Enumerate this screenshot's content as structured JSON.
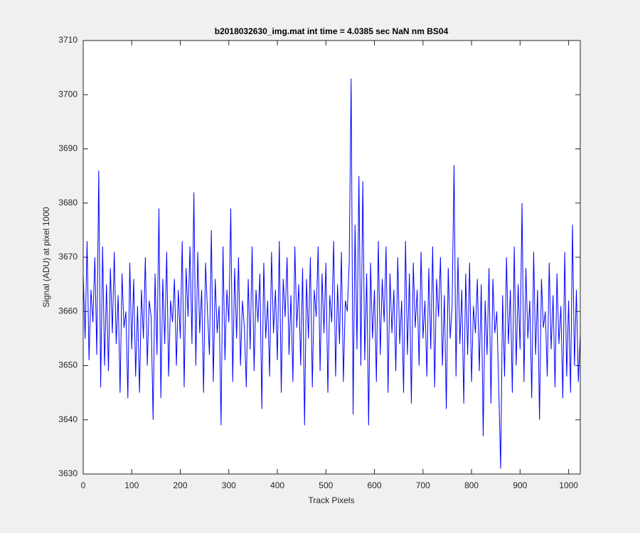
{
  "chart_data": {
    "type": "line",
    "title": "b2018032630_img.mat int time = 4.0385 sec  NaN nm BS04",
    "xlabel": "Track Pixels",
    "ylabel": "Signal (ADU) at pixel 1000",
    "color": "#0000ff",
    "xlim": [
      0,
      1024
    ],
    "xticks": [
      0,
      100,
      200,
      300,
      400,
      500,
      600,
      700,
      800,
      900,
      1000
    ],
    "ylim": [
      3630,
      3710
    ],
    "yticks": [
      3630,
      3640,
      3650,
      3660,
      3670,
      3680,
      3690,
      3700,
      3710
    ],
    "x": [
      0,
      4,
      8,
      12,
      16,
      20,
      24,
      28,
      32,
      36,
      40,
      44,
      48,
      52,
      56,
      60,
      64,
      68,
      72,
      76,
      80,
      84,
      88,
      92,
      96,
      100,
      104,
      108,
      112,
      116,
      120,
      124,
      128,
      132,
      136,
      140,
      144,
      148,
      152,
      156,
      160,
      164,
      168,
      172,
      176,
      180,
      184,
      188,
      192,
      196,
      200,
      204,
      208,
      212,
      216,
      220,
      224,
      228,
      232,
      236,
      240,
      244,
      248,
      252,
      256,
      260,
      264,
      268,
      272,
      276,
      280,
      284,
      288,
      292,
      296,
      300,
      304,
      308,
      312,
      316,
      320,
      324,
      328,
      332,
      336,
      340,
      344,
      348,
      352,
      356,
      360,
      364,
      368,
      372,
      376,
      380,
      384,
      388,
      392,
      396,
      400,
      404,
      408,
      412,
      416,
      420,
      424,
      428,
      432,
      436,
      440,
      444,
      448,
      452,
      456,
      460,
      464,
      468,
      472,
      476,
      480,
      484,
      488,
      492,
      496,
      500,
      504,
      508,
      512,
      516,
      520,
      524,
      528,
      532,
      536,
      540,
      544,
      548,
      552,
      556,
      560,
      564,
      568,
      572,
      576,
      580,
      584,
      588,
      592,
      596,
      600,
      604,
      608,
      612,
      616,
      620,
      624,
      628,
      632,
      636,
      640,
      644,
      648,
      652,
      656,
      660,
      664,
      668,
      672,
      676,
      680,
      684,
      688,
      692,
      696,
      700,
      704,
      708,
      712,
      716,
      720,
      724,
      728,
      732,
      736,
      740,
      744,
      748,
      752,
      756,
      760,
      764,
      768,
      772,
      776,
      780,
      784,
      788,
      792,
      796,
      800,
      804,
      808,
      812,
      816,
      820,
      824,
      828,
      832,
      836,
      840,
      844,
      848,
      852,
      856,
      860,
      864,
      868,
      872,
      876,
      880,
      884,
      888,
      892,
      896,
      900,
      904,
      908,
      912,
      916,
      920,
      924,
      928,
      932,
      936,
      940,
      944,
      948,
      952,
      956,
      960,
      964,
      968,
      972,
      976,
      980,
      984,
      988,
      992,
      996,
      1000,
      1004,
      1008,
      1012,
      1016,
      1020,
      1024
    ],
    "values": [
      3667,
      3655,
      3673,
      3651,
      3664,
      3658,
      3670,
      3652,
      3686,
      3646,
      3672,
      3650,
      3665,
      3649,
      3668,
      3656,
      3671,
      3654,
      3663,
      3645,
      3667,
      3657,
      3660,
      3644,
      3669,
      3653,
      3666,
      3648,
      3661,
      3645,
      3664,
      3655,
      3670,
      3650,
      3662,
      3659,
      3640,
      3667,
      3652,
      3679,
      3644,
      3666,
      3654,
      3671,
      3648,
      3662,
      3658,
      3666,
      3650,
      3664,
      3655,
      3673,
      3646,
      3668,
      3659,
      3672,
      3654,
      3682,
      3650,
      3671,
      3656,
      3664,
      3645,
      3669,
      3660,
      3652,
      3675,
      3647,
      3666,
      3656,
      3661,
      3639,
      3672,
      3651,
      3664,
      3658,
      3679,
      3647,
      3668,
      3655,
      3670,
      3650,
      3662,
      3657,
      3646,
      3666,
      3653,
      3672,
      3649,
      3664,
      3658,
      3667,
      3642,
      3669,
      3655,
      3662,
      3648,
      3671,
      3656,
      3664,
      3651,
      3673,
      3645,
      3666,
      3659,
      3670,
      3652,
      3663,
      3647,
      3672,
      3657,
      3665,
      3650,
      3668,
      3639,
      3666,
      3655,
      3670,
      3646,
      3664,
      3659,
      3672,
      3649,
      3667,
      3656,
      3669,
      3645,
      3663,
      3658,
      3673,
      3648,
      3665,
      3654,
      3671,
      3647,
      3662,
      3660,
      3669,
      3703,
      3641,
      3676,
      3653,
      3685,
      3650,
      3684,
      3651,
      3667,
      3639,
      3669,
      3655,
      3664,
      3647,
      3673,
      3652,
      3666,
      3658,
      3672,
      3645,
      3667,
      3656,
      3664,
      3649,
      3670,
      3654,
      3662,
      3645,
      3673,
      3652,
      3667,
      3643,
      3669,
      3657,
      3664,
      3650,
      3671,
      3655,
      3662,
      3648,
      3668,
      3653,
      3672,
      3646,
      3666,
      3659,
      3670,
      3650,
      3663,
      3642,
      3668,
      3655,
      3661,
      3687,
      3648,
      3670,
      3654,
      3664,
      3643,
      3667,
      3652,
      3669,
      3647,
      3661,
      3656,
      3666,
      3649,
      3665,
      3637,
      3662,
      3652,
      3668,
      3643,
      3666,
      3656,
      3660,
      3646,
      3631,
      3663,
      3648,
      3670,
      3654,
      3664,
      3645,
      3672,
      3650,
      3665,
      3653,
      3680,
      3647,
      3668,
      3655,
      3662,
      3644,
      3671,
      3652,
      3664,
      3640,
      3666,
      3657,
      3660,
      3648,
      3669,
      3653,
      3663,
      3646,
      3667,
      3654,
      3661,
      3644,
      3671,
      3648,
      3662,
      3645,
      3676,
      3650,
      3664,
      3647,
      3656
    ]
  }
}
